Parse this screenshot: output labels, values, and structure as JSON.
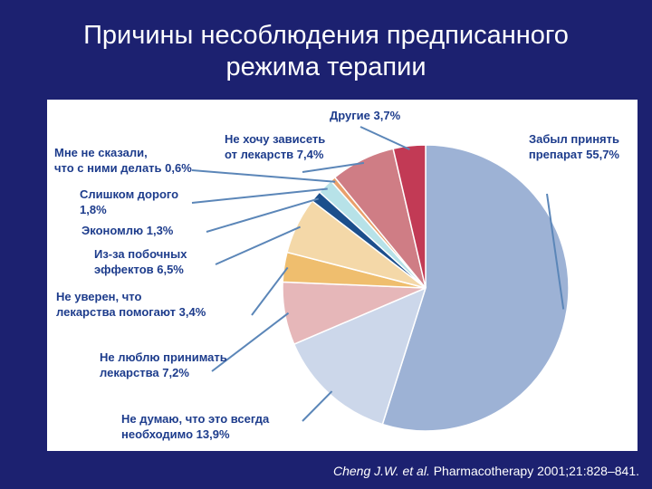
{
  "slide": {
    "title_line1": "Причины несоблюдения предписанного",
    "title_line2": "режима терапии"
  },
  "citation": {
    "authors": "Cheng J.W. et al.",
    "rest": " Pharmacotherapy 2001;21:828–841."
  },
  "colors": {
    "background": "#1c2170",
    "leader_line": "#5b86b8",
    "label_text": "#1d3c8c"
  },
  "chart_data": {
    "type": "pie",
    "start_angle_deg": 0,
    "direction": "clockwise",
    "slices": [
      {
        "label_lines": [
          "Забыл принять",
          "препарат 55,7%"
        ],
        "value": 55.7,
        "color": "#9db2d5"
      },
      {
        "label_lines": [
          "Не думаю, что это всегда",
          "необходимо 13,9%"
        ],
        "value": 13.9,
        "color": "#ccd7ea"
      },
      {
        "label_lines": [
          "Не люблю принимать",
          "лекарства 7,2%"
        ],
        "value": 7.2,
        "color": "#e6b7b9"
      },
      {
        "label_lines": [
          "Не уверен, что",
          "лекарства помогают  3,4%"
        ],
        "value": 3.4,
        "color": "#efbe6e"
      },
      {
        "label_lines": [
          "Из-за побочных",
          "эффектов 6,5%"
        ],
        "value": 6.5,
        "color": "#f4d8a8"
      },
      {
        "label_lines": [
          "Экономлю 1,3%"
        ],
        "value": 1.3,
        "color": "#1c4f8c"
      },
      {
        "label_lines": [
          "Слишком дорого",
          "1,8%"
        ],
        "value": 1.8,
        "color": "#b7e2e8"
      },
      {
        "label_lines": [
          "Мне не сказали,",
          "что с ними делать 0,6%"
        ],
        "value": 0.6,
        "color": "#e9a06b"
      },
      {
        "label_lines": [
          "Не хочу зависеть",
          "от лекарств 7,4%"
        ],
        "value": 7.4,
        "color": "#cf7d85"
      },
      {
        "label_lines": [
          "Другие 3,7%"
        ],
        "value": 3.7,
        "color": "#c23a55"
      }
    ]
  }
}
